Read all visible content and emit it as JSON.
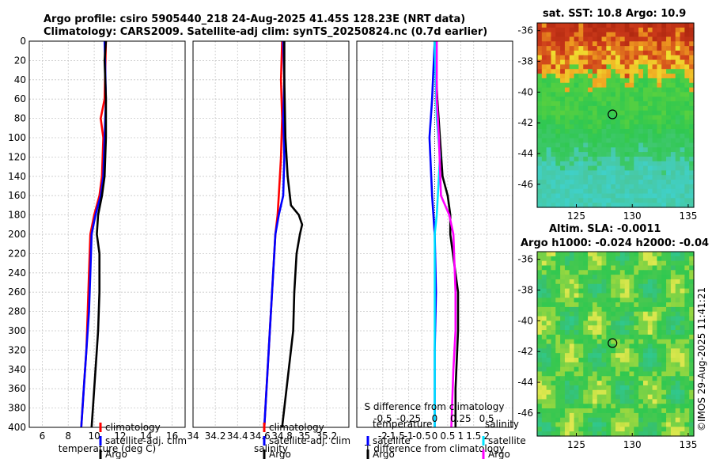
{
  "header": {
    "title_line1": "Argo profile: csiro 5905440_218 24-Aug-2025 41.45S 128.23E (NRT data)",
    "title_line2": "Climatology: CARS2009. Satellite-adj clim: synTS_20250824.nc (0.7d earlier)"
  },
  "maps": {
    "sst_title": "sat. SST: 10.8 Argo: 10.9",
    "sla_title_line1": "Altim. SLA: -0.0011",
    "sla_title_line2": "Argo h1000: -0.024 h2000: -0.04",
    "lat_ticks": [
      "-36",
      "-38",
      "-40",
      "-42",
      "-44",
      "-46"
    ],
    "lon_ticks": [
      "125",
      "130",
      "135"
    ],
    "argo_lat": -41.45,
    "argo_lon": 128.23,
    "colors": {
      "warm": "#cc3a1a",
      "orange": "#f0a020",
      "yellow": "#f0e030",
      "green": "#30c850",
      "cyan": "#40d0c8"
    }
  },
  "timestamp": "©IMOS 29-Aug-2025 11:41:21",
  "chart_data": [
    {
      "type": "line",
      "xlabel": "temperature (deg C)",
      "ylabel": "",
      "xlim": [
        5,
        17
      ],
      "ylim": [
        0,
        400
      ],
      "xticks": [
        "6",
        "8",
        "10",
        "12",
        "14",
        "16"
      ],
      "yticks": [
        "0",
        "20",
        "40",
        "60",
        "80",
        "100",
        "120",
        "140",
        "160",
        "180",
        "200",
        "220",
        "240",
        "260",
        "280",
        "300",
        "320",
        "340",
        "360",
        "380",
        "400"
      ],
      "legend": [
        "climatology",
        "satellite-adj. clim",
        "Argo"
      ],
      "series": [
        {
          "name": "climatology",
          "color": "#ff0000",
          "depth": [
            0,
            60,
            80,
            100,
            140,
            160,
            180,
            200,
            240,
            280,
            320,
            360,
            400
          ],
          "values": [
            10.9,
            10.8,
            10.5,
            10.7,
            10.6,
            10.4,
            10.0,
            9.7,
            9.6,
            9.5,
            9.4,
            9.2,
            9.0
          ]
        },
        {
          "name": "satellite-adj. clim",
          "color": "#0000ff",
          "depth": [
            0,
            60,
            100,
            140,
            160,
            180,
            200,
            240,
            280,
            320,
            360,
            400
          ],
          "values": [
            10.8,
            10.9,
            10.8,
            10.7,
            10.5,
            10.1,
            9.8,
            9.7,
            9.6,
            9.4,
            9.2,
            9.0
          ]
        },
        {
          "name": "Argo",
          "color": "#000000",
          "depth": [
            0,
            20,
            60,
            100,
            140,
            160,
            180,
            200,
            220,
            260,
            300,
            320,
            360,
            400
          ],
          "values": [
            10.9,
            10.8,
            10.9,
            10.9,
            10.8,
            10.6,
            10.3,
            10.2,
            10.4,
            10.4,
            10.3,
            10.2,
            10.0,
            9.8
          ]
        }
      ]
    },
    {
      "type": "line",
      "xlabel": "salinity",
      "ylabel": "",
      "xlim": [
        34,
        35.4
      ],
      "ylim": [
        0,
        400
      ],
      "xticks": [
        "34",
        "34.2",
        "34.4",
        "34.6",
        "34.8",
        "35",
        "35.2"
      ],
      "legend": [
        "climatology",
        "satellite-adj. clim",
        "Argo"
      ],
      "series": [
        {
          "name": "climatology",
          "color": "#ff0000",
          "depth": [
            0,
            40,
            80,
            120,
            160,
            180,
            200,
            240,
            280,
            320,
            360,
            400
          ],
          "values": [
            34.8,
            34.79,
            34.8,
            34.79,
            34.77,
            34.76,
            34.74,
            34.72,
            34.7,
            34.68,
            34.66,
            34.64
          ]
        },
        {
          "name": "satellite-adj. clim",
          "color": "#0000ff",
          "depth": [
            0,
            40,
            80,
            120,
            160,
            180,
            200,
            240,
            280,
            320,
            360,
            400
          ],
          "values": [
            34.81,
            34.82,
            34.81,
            34.82,
            34.81,
            34.77,
            34.74,
            34.72,
            34.7,
            34.68,
            34.66,
            34.64
          ]
        },
        {
          "name": "Argo",
          "color": "#000000",
          "depth": [
            0,
            40,
            100,
            140,
            160,
            170,
            180,
            190,
            200,
            220,
            260,
            300,
            340,
            400
          ],
          "values": [
            34.82,
            34.82,
            34.83,
            34.85,
            34.87,
            34.88,
            34.95,
            34.98,
            34.96,
            34.93,
            34.91,
            34.9,
            34.86,
            34.8
          ]
        }
      ]
    },
    {
      "type": "line",
      "xlabel": "T difference from climatology",
      "ylabel": "",
      "xlim": [
        -3,
        3
      ],
      "ylim": [
        0,
        400
      ],
      "xticks": [
        "-2",
        "-1.5",
        "-1",
        "-0.5",
        "0",
        "0.5",
        "1",
        "1.5",
        "2"
      ],
      "top_axis_label": "S difference from climatology",
      "top_ticks": [
        "-0.5",
        "-0.25",
        "0",
        "0.25",
        "0.5"
      ],
      "legend_title_left": "temperature",
      "legend_title_right": "salinity",
      "legend": [
        "satellite",
        "Argo",
        "satellite",
        "Argo"
      ],
      "series": [
        {
          "name": "temperature satellite",
          "color": "#0000ff",
          "depth": [
            0,
            60,
            100,
            160,
            200,
            260,
            320,
            400
          ],
          "values": [
            0.0,
            -0.1,
            -0.2,
            -0.1,
            0.0,
            0.05,
            0.0,
            0.0
          ]
        },
        {
          "name": "temperature Argo",
          "color": "#000000",
          "depth": [
            0,
            60,
            100,
            140,
            160,
            180,
            200,
            260,
            300,
            360,
            400
          ],
          "values": [
            0.0,
            0.1,
            0.2,
            0.3,
            0.5,
            0.6,
            0.6,
            0.9,
            0.9,
            0.8,
            0.8
          ]
        },
        {
          "name": "salinity satellite",
          "color": "#00e5ff",
          "depth": [
            0,
            80,
            120,
            180,
            200,
            260,
            320,
            400
          ],
          "values": [
            0.0,
            0.02,
            0.05,
            0.02,
            0.0,
            0.0,
            0.0,
            0.0
          ]
        },
        {
          "name": "salinity Argo",
          "color": "#ff00ff",
          "depth": [
            0,
            60,
            100,
            160,
            180,
            200,
            260,
            300,
            340,
            400
          ],
          "values": [
            0.02,
            0.02,
            0.04,
            0.06,
            0.14,
            0.18,
            0.2,
            0.2,
            0.18,
            0.16
          ]
        }
      ]
    }
  ]
}
